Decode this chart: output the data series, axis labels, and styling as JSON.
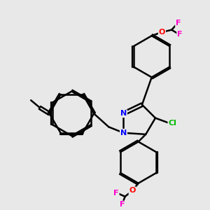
{
  "background_color": "#e8e8e8",
  "bond_color": "#000000",
  "bond_width": 1.8,
  "atom_colors": {
    "N": "#0000ff",
    "O": "#ff0000",
    "F": "#ff00cc",
    "Cl": "#00bb00",
    "C": "#000000"
  },
  "figsize": [
    3.0,
    3.0
  ],
  "dpi": 100
}
